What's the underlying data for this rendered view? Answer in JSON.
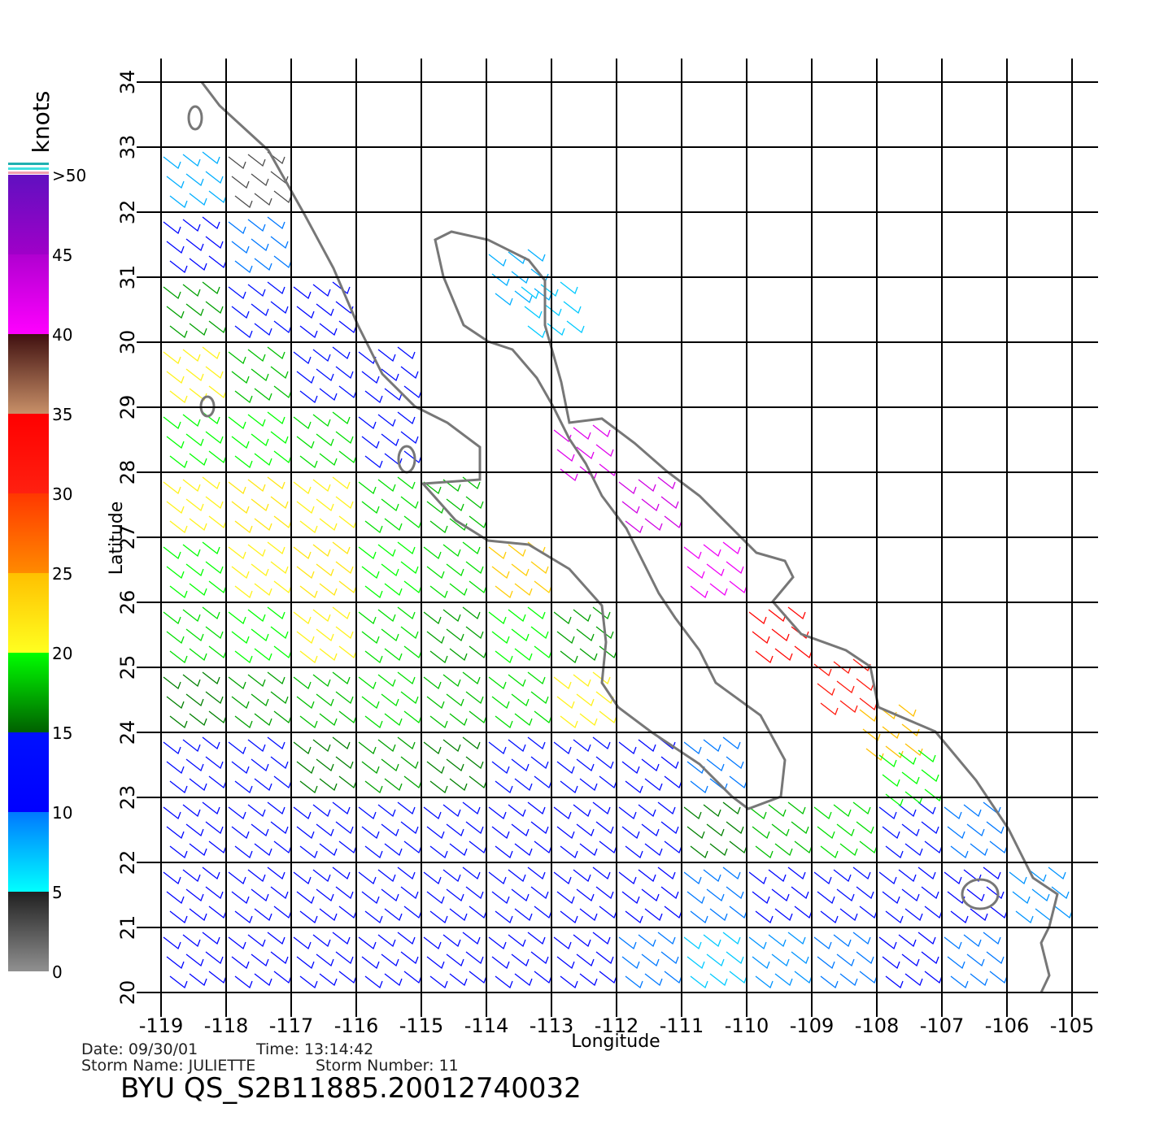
{
  "chart_data": {
    "type": "windmap",
    "xlabel": "Longitude",
    "ylabel": "Latitude",
    "xlim": [
      -119,
      -105
    ],
    "ylim": [
      20,
      34
    ],
    "xticks": [
      -119,
      -118,
      -117,
      -116,
      -115,
      -114,
      -113,
      -112,
      -111,
      -110,
      -109,
      -108,
      -107,
      -106,
      -105
    ],
    "yticks": [
      20,
      21,
      22,
      23,
      24,
      25,
      26,
      27,
      28,
      29,
      30,
      31,
      32,
      33,
      34
    ],
    "grid": true,
    "colorbar": {
      "label": "knots",
      "ticks": [
        0,
        5,
        10,
        15,
        20,
        25,
        30,
        35,
        40,
        45,
        {
          "value": 50,
          "label": ">50"
        }
      ],
      "colors": [
        [
          "#909090",
          "#202020"
        ],
        [
          "#00ffff",
          "#0078ff"
        ],
        [
          "#0000ff",
          "#0010ff"
        ],
        [
          "#006000",
          "#00ff00"
        ],
        [
          "#ffff20",
          "#ffc000"
        ],
        [
          "#ff8a00",
          "#ff3800"
        ],
        [
          "#ff2010",
          "#ff0000"
        ],
        [
          "#c89068",
          "#401010"
        ],
        [
          "#ff00ff",
          "#b000d0"
        ],
        [
          "#a000c8",
          "#6010c0"
        ]
      ]
    },
    "wind": {
      "lon": [
        -118.5,
        -117.5,
        -118.5,
        -117.5,
        -118.5,
        -117.5,
        -116.5,
        -118.5,
        -117.5,
        -116.5,
        -115.5,
        -118.5,
        -117.5,
        -116.5,
        -115.5,
        -118.5,
        -117.5,
        -116.5,
        -115.5,
        -114.5,
        -118.5,
        -117.5,
        -116.5,
        -115.5,
        -114.5,
        -113.5,
        -118.5,
        -117.5,
        -116.5,
        -115.5,
        -114.5,
        -113.5,
        -112.5,
        -118.5,
        -117.5,
        -116.5,
        -115.5,
        -114.5,
        -113.5,
        -112.5,
        -118.5,
        -117.5,
        -116.5,
        -115.5,
        -114.5,
        -113.5,
        -112.5,
        -111.5,
        -110.5,
        -118.5,
        -117.5,
        -116.5,
        -115.5,
        -114.5,
        -113.5,
        -112.5,
        -111.5,
        -110.5,
        -109.5,
        -108.5,
        -107.5,
        -106.5,
        -118.5,
        -117.5,
        -116.5,
        -115.5,
        -114.5,
        -113.5,
        -112.5,
        -111.5,
        -110.5,
        -109.5,
        -108.5,
        -107.5,
        -106.5,
        -105.5,
        -118.5,
        -117.5,
        -116.5,
        -115.5,
        -114.5,
        -113.5,
        -112.5,
        -111.5,
        -110.5,
        -109.5,
        -108.5,
        -107.5,
        -106.5,
        -112.5,
        -111.5,
        -110.5,
        -109.5,
        -108.5,
        -107.8,
        -107.5,
        -113.5,
        -113
      ],
      "lat": [
        32.5,
        32.5,
        31.5,
        31.5,
        30.5,
        30.5,
        30.5,
        29.5,
        29.5,
        29.5,
        29.5,
        28.5,
        28.5,
        28.5,
        28.5,
        27.5,
        27.5,
        27.5,
        27.5,
        27.5,
        26.5,
        26.5,
        26.5,
        26.5,
        26.5,
        26.5,
        25.5,
        25.5,
        25.5,
        25.5,
        25.5,
        25.5,
        25.5,
        24.5,
        24.5,
        24.5,
        24.5,
        24.5,
        24.5,
        24.5,
        23.5,
        23.5,
        23.5,
        23.5,
        23.5,
        23.5,
        23.5,
        23.5,
        23.5,
        22.5,
        22.5,
        22.5,
        22.5,
        22.5,
        22.5,
        22.5,
        22.5,
        22.5,
        22.5,
        22.5,
        22.5,
        22.5,
        21.5,
        21.5,
        21.5,
        21.5,
        21.5,
        21.5,
        21.5,
        21.5,
        21.5,
        21.5,
        21.5,
        21.5,
        21.5,
        21.5,
        20.5,
        20.5,
        20.5,
        20.5,
        20.5,
        20.5,
        20.5,
        20.5,
        20.5,
        20.5,
        20.5,
        20.5,
        20.5,
        28.3,
        27.5,
        26.5,
        25.5,
        24.7,
        24,
        23.3,
        31,
        30.5
      ],
      "speed": [
        8,
        3,
        12,
        10,
        17,
        15,
        12,
        21,
        18,
        15,
        13,
        20,
        20,
        19,
        14,
        21,
        22,
        21,
        19,
        18,
        20,
        21,
        22,
        20,
        19,
        24,
        19,
        20,
        21,
        19,
        17,
        20,
        17,
        16,
        17,
        18,
        19,
        18,
        19,
        21,
        13,
        14,
        16,
        17,
        16,
        15,
        14,
        12,
        10,
        12,
        13,
        13,
        14,
        13,
        12,
        12,
        13,
        16,
        18,
        19,
        15,
        10,
        11,
        12,
        12,
        13,
        13,
        13,
        12,
        11,
        10,
        12,
        14,
        13,
        11,
        9,
        11,
        11,
        12,
        12,
        12,
        12,
        11,
        10,
        7,
        9,
        10,
        11,
        10,
        42,
        43,
        41,
        34,
        31,
        25,
        20,
        8,
        7
      ]
    },
    "footer": {
      "date": "Date: 09/30/01",
      "time": "Time: 13:14:42",
      "storm_name": "Storm Name: JULIETTE",
      "storm_number": "Storm Number: 11",
      "id": "BYU QS_S2B11885.20012740032"
    }
  }
}
